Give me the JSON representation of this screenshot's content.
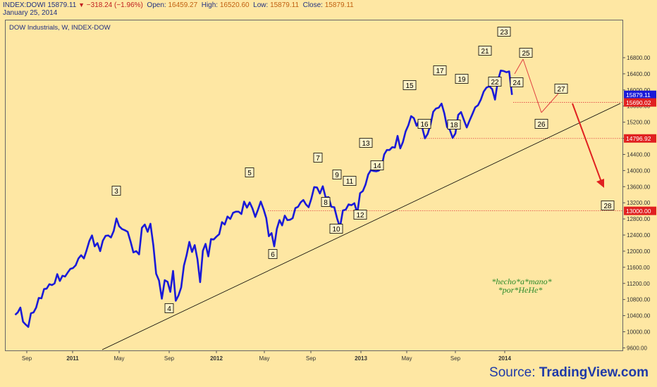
{
  "header": {
    "symbol": "INDEX:DOWI",
    "last": "15879.11",
    "change": "−318.24 (−1.96%)",
    "open_label": "Open:",
    "open": "16459.27",
    "high_label": "High:",
    "high": "16520.60",
    "low_label": "Low:",
    "low": "15879.11",
    "close_label": "Close:",
    "close": "15879.11",
    "date": "January 25, 2014"
  },
  "chart_data": {
    "type": "line",
    "title": "DOW Industrials, W, INDEX-DOW",
    "xlabel": "",
    "ylabel": "",
    "ylim": [
      9600,
      17100
    ],
    "yticks": [
      9600,
      10000,
      10400,
      10800,
      11200,
      11600,
      12000,
      12400,
      12800,
      13200,
      13600,
      14000,
      14400,
      14800,
      15200,
      15600,
      16000,
      16400,
      16800
    ],
    "ytick_labels": [
      "9600.00",
      "10000.00",
      "10400.00",
      "10800.00",
      "11200.00",
      "11600.00",
      "12000.00",
      "12400.00",
      "12800.00",
      "13200.00",
      "13600.00",
      "14000.00",
      "14400.00",
      "14800.00",
      "15200.00",
      "15600.00",
      "16000.00",
      "16400.00",
      "16800.00"
    ],
    "xtick_labels": [
      "Sep",
      "2011",
      "May",
      "Sep",
      "2012",
      "May",
      "Sep",
      "2013",
      "May",
      "Sep",
      "2014"
    ],
    "xtick_dates": [
      "2010-09-01",
      "2011-01-01",
      "2011-05-01",
      "2011-09-01",
      "2012-01-01",
      "2012-05-01",
      "2012-09-01",
      "2013-01-01",
      "2013-05-01",
      "2013-09-01",
      "2014-01-01"
    ],
    "series": [
      {
        "name": "",
        "color": "#1a1ad8",
        "points": [
          [
            "2010-08-01",
            10420
          ],
          [
            "2010-08-08",
            10480
          ],
          [
            "2010-08-15",
            10600
          ],
          [
            "2010-08-22",
            10250
          ],
          [
            "2010-08-29",
            10180
          ],
          [
            "2010-09-05",
            10120
          ],
          [
            "2010-09-12",
            10460
          ],
          [
            "2010-09-19",
            10480
          ],
          [
            "2010-09-26",
            10600
          ],
          [
            "2010-10-03",
            10840
          ],
          [
            "2010-10-10",
            10830
          ],
          [
            "2010-10-17",
            11060
          ],
          [
            "2010-10-24",
            11070
          ],
          [
            "2010-10-31",
            11180
          ],
          [
            "2010-11-07",
            11160
          ],
          [
            "2010-11-14",
            11200
          ],
          [
            "2010-11-21",
            11430
          ],
          [
            "2010-11-28",
            11260
          ],
          [
            "2010-12-05",
            11390
          ],
          [
            "2010-12-12",
            11370
          ],
          [
            "2010-12-19",
            11470
          ],
          [
            "2010-12-26",
            11560
          ],
          [
            "2011-01-02",
            11580
          ],
          [
            "2011-01-09",
            11650
          ],
          [
            "2011-01-16",
            11820
          ],
          [
            "2011-01-23",
            11900
          ],
          [
            "2011-01-30",
            11820
          ],
          [
            "2011-02-06",
            12020
          ],
          [
            "2011-02-13",
            12250
          ],
          [
            "2011-02-20",
            12390
          ],
          [
            "2011-02-27",
            12120
          ],
          [
            "2011-03-06",
            12200
          ],
          [
            "2011-03-13",
            12000
          ],
          [
            "2011-03-20",
            12260
          ],
          [
            "2011-03-27",
            12380
          ],
          [
            "2011-04-03",
            12390
          ],
          [
            "2011-04-10",
            12340
          ],
          [
            "2011-04-17",
            12500
          ],
          [
            "2011-04-24",
            12810
          ],
          [
            "2011-05-01",
            12620
          ],
          [
            "2011-05-08",
            12550
          ],
          [
            "2011-05-15",
            12520
          ],
          [
            "2011-05-22",
            12480
          ],
          [
            "2011-05-29",
            12240
          ],
          [
            "2011-06-05",
            11970
          ],
          [
            "2011-06-12",
            12000
          ],
          [
            "2011-06-19",
            11920
          ],
          [
            "2011-06-26",
            12580
          ],
          [
            "2011-07-03",
            12660
          ],
          [
            "2011-07-10",
            12480
          ],
          [
            "2011-07-17",
            12680
          ],
          [
            "2011-07-24",
            12150
          ],
          [
            "2011-07-31",
            11440
          ],
          [
            "2011-08-07",
            11270
          ],
          [
            "2011-08-14",
            10820
          ],
          [
            "2011-08-21",
            11280
          ],
          [
            "2011-08-28",
            11240
          ],
          [
            "2011-09-04",
            10990
          ],
          [
            "2011-09-11",
            11510
          ],
          [
            "2011-09-18",
            10770
          ],
          [
            "2011-09-25",
            10900
          ],
          [
            "2011-10-02",
            11100
          ],
          [
            "2011-10-09",
            11640
          ],
          [
            "2011-10-16",
            11900
          ],
          [
            "2011-10-23",
            12230
          ],
          [
            "2011-10-30",
            11980
          ],
          [
            "2011-11-06",
            12150
          ],
          [
            "2011-11-13",
            11800
          ],
          [
            "2011-11-20",
            11230
          ],
          [
            "2011-11-27",
            12010
          ],
          [
            "2011-12-04",
            12180
          ],
          [
            "2011-12-11",
            11870
          ],
          [
            "2011-12-18",
            12300
          ],
          [
            "2011-12-25",
            12290
          ],
          [
            "2012-01-01",
            12360
          ],
          [
            "2012-01-08",
            12420
          ],
          [
            "2012-01-15",
            12720
          ],
          [
            "2012-01-22",
            12660
          ],
          [
            "2012-01-29",
            12860
          ],
          [
            "2012-02-05",
            12800
          ],
          [
            "2012-02-12",
            12950
          ],
          [
            "2012-02-19",
            12980
          ],
          [
            "2012-02-26",
            12980
          ],
          [
            "2012-03-04",
            12920
          ],
          [
            "2012-03-11",
            13230
          ],
          [
            "2012-03-18",
            13080
          ],
          [
            "2012-03-25",
            13210
          ],
          [
            "2012-04-01",
            13060
          ],
          [
            "2012-04-08",
            12850
          ],
          [
            "2012-04-15",
            13030
          ],
          [
            "2012-04-22",
            13230
          ],
          [
            "2012-04-29",
            13040
          ],
          [
            "2012-05-06",
            12820
          ],
          [
            "2012-05-13",
            12370
          ],
          [
            "2012-05-20",
            12450
          ],
          [
            "2012-05-27",
            12120
          ],
          [
            "2012-06-03",
            12550
          ],
          [
            "2012-06-10",
            12770
          ],
          [
            "2012-06-17",
            12640
          ],
          [
            "2012-06-24",
            12880
          ],
          [
            "2012-07-01",
            12770
          ],
          [
            "2012-07-08",
            12780
          ],
          [
            "2012-07-15",
            12820
          ],
          [
            "2012-07-22",
            13070
          ],
          [
            "2012-07-29",
            13100
          ],
          [
            "2012-08-05",
            13210
          ],
          [
            "2012-08-12",
            13270
          ],
          [
            "2012-08-19",
            13160
          ],
          [
            "2012-08-26",
            13090
          ],
          [
            "2012-09-02",
            13300
          ],
          [
            "2012-09-09",
            13590
          ],
          [
            "2012-09-16",
            13580
          ],
          [
            "2012-09-23",
            13430
          ],
          [
            "2012-09-30",
            13610
          ],
          [
            "2012-10-07",
            13330
          ],
          [
            "2012-10-14",
            13340
          ],
          [
            "2012-10-21",
            13100
          ],
          [
            "2012-10-28",
            13090
          ],
          [
            "2012-11-04",
            12810
          ],
          [
            "2012-11-11",
            12590
          ],
          [
            "2012-11-18",
            13010
          ],
          [
            "2012-11-25",
            13030
          ],
          [
            "2012-12-02",
            13160
          ],
          [
            "2012-12-09",
            13140
          ],
          [
            "2012-12-16",
            13190
          ],
          [
            "2012-12-23",
            12940
          ],
          [
            "2012-12-30",
            13440
          ],
          [
            "2013-01-06",
            13490
          ],
          [
            "2013-01-13",
            13650
          ],
          [
            "2013-01-20",
            13900
          ],
          [
            "2013-01-27",
            14010
          ],
          [
            "2013-02-03",
            13990
          ],
          [
            "2013-02-10",
            13980
          ],
          [
            "2013-02-17",
            14000
          ],
          [
            "2013-02-24",
            14090
          ],
          [
            "2013-03-03",
            14400
          ],
          [
            "2013-03-10",
            14510
          ],
          [
            "2013-03-17",
            14510
          ],
          [
            "2013-03-24",
            14580
          ],
          [
            "2013-03-31",
            14570
          ],
          [
            "2013-04-07",
            14860
          ],
          [
            "2013-04-14",
            14550
          ],
          [
            "2013-04-21",
            14710
          ],
          [
            "2013-04-28",
            14970
          ],
          [
            "2013-05-05",
            15120
          ],
          [
            "2013-05-12",
            15350
          ],
          [
            "2013-05-19",
            15300
          ],
          [
            "2013-05-26",
            15110
          ],
          [
            "2013-06-02",
            15250
          ],
          [
            "2013-06-09",
            15070
          ],
          [
            "2013-06-16",
            14800
          ],
          [
            "2013-06-23",
            14910
          ],
          [
            "2013-06-30",
            15140
          ],
          [
            "2013-07-07",
            15460
          ],
          [
            "2013-07-14",
            15540
          ],
          [
            "2013-07-21",
            15560
          ],
          [
            "2013-07-28",
            15660
          ],
          [
            "2013-08-04",
            15420
          ],
          [
            "2013-08-11",
            15080
          ],
          [
            "2013-08-18",
            15010
          ],
          [
            "2013-08-25",
            14810
          ],
          [
            "2013-09-01",
            14920
          ],
          [
            "2013-09-08",
            15380
          ],
          [
            "2013-09-15",
            15450
          ],
          [
            "2013-09-22",
            15260
          ],
          [
            "2013-09-29",
            15070
          ],
          [
            "2013-10-06",
            15240
          ],
          [
            "2013-10-13",
            15400
          ],
          [
            "2013-10-20",
            15570
          ],
          [
            "2013-10-27",
            15620
          ],
          [
            "2013-11-03",
            15760
          ],
          [
            "2013-11-10",
            15960
          ],
          [
            "2013-11-17",
            16060
          ],
          [
            "2013-11-24",
            16090
          ],
          [
            "2013-12-01",
            16020
          ],
          [
            "2013-12-08",
            15760
          ],
          [
            "2013-12-15",
            16220
          ],
          [
            "2013-12-22",
            16480
          ],
          [
            "2013-12-29",
            16470
          ],
          [
            "2014-01-05",
            16440
          ],
          [
            "2014-01-12",
            16460
          ],
          [
            "2014-01-19",
            15879
          ]
        ]
      }
    ],
    "price_labels": [
      {
        "value": 15879.11,
        "text": "15879.11",
        "bg": "#1a1ad8"
      },
      {
        "value": 15690.02,
        "text": "15690.02",
        "bg": "#e02020"
      },
      {
        "value": 14796.92,
        "text": "14796.92",
        "bg": "#e02020"
      },
      {
        "value": 13000.0,
        "text": "13000.00",
        "bg": "#e02020"
      }
    ],
    "wave_labels": [
      "3",
      "4",
      "5",
      "6",
      "7",
      "8",
      "9",
      "10",
      "11",
      "12",
      "13",
      "14",
      "15",
      "16",
      "17",
      "18",
      "19",
      "21",
      "22",
      "23",
      "24",
      "25",
      "26",
      "27",
      "28"
    ],
    "annotation": [
      "*hecho*a*mano*",
      "*por*HeHe*"
    ],
    "grid": false,
    "trendline_color": "#000000",
    "projection_color": "#e02020"
  },
  "footer": {
    "source_prefix": "Source: ",
    "source_name": "TradingView.com"
  }
}
